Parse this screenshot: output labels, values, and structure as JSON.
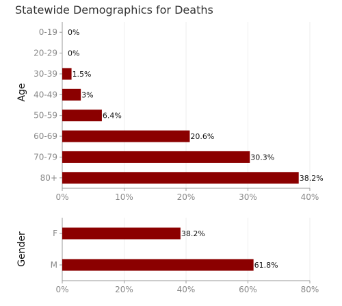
{
  "colors": {
    "bar": "#8b0000",
    "grid": "#eeeeee",
    "axis": "#999999"
  },
  "chart_data": [
    {
      "type": "bar",
      "orientation": "horizontal",
      "title": "Statewide Demographics for Deaths",
      "ylabel": "Age",
      "xlabel": "",
      "xlim": [
        0,
        40
      ],
      "xticks": [
        "0%",
        "10%",
        "20%",
        "30%",
        "40%"
      ],
      "grid": true,
      "categories": [
        "0-19",
        "20-29",
        "30-39",
        "40-49",
        "50-59",
        "60-69",
        "70-79",
        "80+"
      ],
      "values": [
        0,
        0,
        1.5,
        3,
        6.4,
        20.6,
        30.3,
        38.2
      ],
      "labels": [
        "0%",
        "0%",
        "1.5%",
        "3%",
        "6.4%",
        "20.6%",
        "30.3%",
        "38.2%"
      ]
    },
    {
      "type": "bar",
      "orientation": "horizontal",
      "ylabel": "Gender",
      "xlabel": "",
      "xlim": [
        0,
        80
      ],
      "xticks": [
        "0%",
        "20%",
        "40%",
        "60%",
        "80%"
      ],
      "grid": true,
      "categories": [
        "F",
        "M"
      ],
      "values": [
        38.2,
        61.8
      ],
      "labels": [
        "38.2%",
        "61.8%"
      ]
    }
  ]
}
